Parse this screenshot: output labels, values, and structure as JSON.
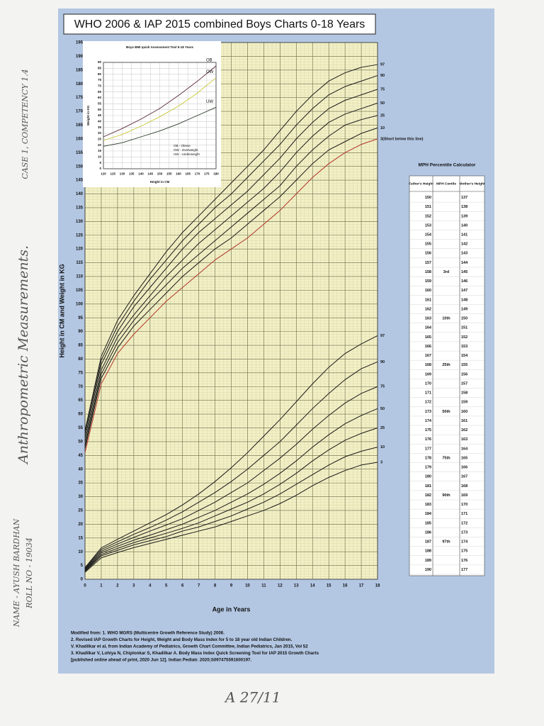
{
  "chart_data": [
    {
      "type": "line",
      "title": "WHO 2006 & IAP 2015 combined Boys Charts 0-18 Years",
      "xlabel": "Age in Years",
      "ylabel": "Height in CM and Weight in KG",
      "x": [
        0,
        1,
        2,
        3,
        4,
        5,
        6,
        7,
        8,
        9,
        10,
        11,
        12,
        13,
        14,
        15,
        16,
        17,
        18
      ],
      "xlim": [
        0,
        18
      ],
      "xticks": [
        0,
        1,
        2,
        3,
        4,
        5,
        6,
        7,
        8,
        9,
        10,
        11,
        12,
        13,
        14,
        15,
        16,
        17,
        18
      ],
      "ylim": [
        0,
        195
      ],
      "yticks": [
        0,
        5,
        10,
        15,
        20,
        25,
        30,
        35,
        40,
        45,
        50,
        55,
        60,
        65,
        70,
        75,
        80,
        85,
        90,
        95,
        100,
        105,
        110,
        115,
        120,
        125,
        130,
        135,
        140,
        145,
        150,
        155,
        160,
        165,
        170,
        175,
        180,
        185,
        190,
        195
      ],
      "grid": true,
      "series": [
        {
          "name": "97",
          "color": "#1a1a1a",
          "values": [
            54,
            81,
            94,
            103,
            111,
            119,
            126,
            132,
            138,
            144,
            150,
            156,
            163,
            170,
            176,
            181,
            184,
            186,
            187
          ]
        },
        {
          "name": "90",
          "color": "#1a1a1a",
          "values": [
            53,
            79.5,
            92,
            101,
            109,
            116,
            123,
            129,
            135,
            140,
            146,
            152,
            158,
            165,
            171,
            176,
            179,
            181,
            183
          ]
        },
        {
          "name": "75",
          "color": "#1a1a1a",
          "values": [
            51.5,
            78,
            90,
            99,
            106,
            113,
            120,
            126,
            131,
            136,
            141,
            147,
            153,
            160,
            166,
            171,
            174,
            176,
            178
          ]
        },
        {
          "name": "50",
          "color": "#1a1a1a",
          "values": [
            50,
            76,
            88,
            96,
            103,
            110,
            116,
            122,
            127,
            132,
            137,
            142,
            148,
            155,
            161,
            166,
            169,
            171,
            173
          ]
        },
        {
          "name": "25",
          "color": "#1a1a1a",
          "values": [
            48.5,
            74.5,
            86,
            94,
            101,
            107,
            113,
            118,
            123,
            128,
            133,
            138,
            143,
            150,
            156,
            161,
            165,
            167,
            168.5
          ]
        },
        {
          "name": "10",
          "color": "#1a1a1a",
          "values": [
            47.5,
            73,
            84,
            92,
            98,
            104,
            110,
            115,
            120,
            124,
            129,
            134,
            139,
            145,
            151,
            156,
            159,
            162,
            164
          ]
        },
        {
          "name": "3(Short below this line)",
          "color": "#b0352a",
          "values": [
            46,
            71,
            82,
            89,
            95,
            101,
            106,
            111,
            116,
            120,
            124,
            129,
            134,
            140,
            146,
            151,
            155,
            158,
            160
          ]
        },
        {
          "name": "97",
          "color": "#1a1a1a",
          "values": [
            4.2,
            11.4,
            14.5,
            17.5,
            20.5,
            23.5,
            27,
            31,
            35.5,
            40.5,
            46,
            52,
            58,
            64.5,
            71,
            77,
            82,
            85.5,
            88.5
          ]
        },
        {
          "name": "90",
          "color": "#1a1a1a",
          "values": [
            3.9,
            10.8,
            13.6,
            16.3,
            18.8,
            21.5,
            24.5,
            28,
            31.5,
            35.5,
            40,
            45,
            50,
            56,
            62,
            67.5,
            72.5,
            76.5,
            79
          ]
        },
        {
          "name": "75",
          "color": "#1a1a1a",
          "values": [
            3.6,
            10.2,
            12.8,
            15.2,
            17.5,
            19.7,
            22,
            25,
            28,
            31.5,
            35,
            39.5,
            44,
            49,
            54.5,
            59.5,
            64,
            67.5,
            70
          ]
        },
        {
          "name": "50",
          "color": "#1a1a1a",
          "values": [
            3.3,
            9.6,
            12,
            14.2,
            16,
            18,
            20,
            22.5,
            25,
            28,
            31,
            34.5,
            38.5,
            43,
            48,
            52.5,
            56.5,
            59.5,
            62
          ]
        },
        {
          "name": "25",
          "color": "#1a1a1a",
          "values": [
            3.1,
            9,
            11.2,
            13.3,
            15,
            16.7,
            18.5,
            20.5,
            23,
            25.5,
            28,
            31,
            34.5,
            38.5,
            43,
            47,
            50.5,
            53,
            55
          ]
        },
        {
          "name": "10",
          "color": "#1a1a1a",
          "values": [
            2.8,
            8.5,
            10.5,
            12.5,
            14,
            15.5,
            17.5,
            19,
            21,
            23,
            25.5,
            28,
            31,
            34.5,
            38,
            41.5,
            44.5,
            46.5,
            48
          ]
        },
        {
          "name": "3",
          "color": "#1a1a1a",
          "values": [
            2.5,
            7.8,
            9.7,
            11.5,
            13,
            14.5,
            16,
            17.5,
            19,
            21,
            23,
            25,
            27.5,
            30.5,
            34,
            37,
            39.5,
            41.5,
            42.5
          ]
        }
      ]
    },
    {
      "type": "line",
      "title": "Boys BMI quick Assessment Tool 5-18 Years",
      "xlabel": "Height in CM",
      "ylabel": "Weight in KG",
      "x": [
        120,
        130,
        140,
        150,
        160,
        170,
        180
      ],
      "xlim": [
        120,
        180
      ],
      "xticks": [
        120,
        125,
        130,
        135,
        140,
        145,
        150,
        155,
        160,
        165,
        170,
        175,
        180
      ],
      "ylim": [
        0,
        90
      ],
      "yticks": [
        0,
        5,
        10,
        15,
        20,
        25,
        30,
        35,
        40,
        45,
        50,
        55,
        60,
        65,
        70,
        75,
        80,
        85,
        90
      ],
      "grid": true,
      "legend": "lower right",
      "series": [
        {
          "name": "OB",
          "legend_label": "OB - Obese",
          "color": "#5a2a3a",
          "values": [
            27,
            34,
            42,
            51,
            62,
            74,
            87
          ]
        },
        {
          "name": "OW",
          "legend_label": "OW - Overweight",
          "color": "#c8c838",
          "values": [
            24,
            29,
            36,
            44,
            53,
            64,
            77
          ]
        },
        {
          "name": "UW",
          "legend_label": "UW - Underweight",
          "color": "#2a3a2a",
          "values": [
            19,
            22,
            27,
            32,
            38,
            45,
            52
          ]
        }
      ]
    }
  ],
  "mph_calculator": {
    "title": "MPH Percentile Calculator",
    "headers": [
      "Father's Height",
      "MPH Centile",
      "Mother's Height"
    ],
    "rows": [
      {
        "father": 150,
        "mother": 137
      },
      {
        "father": 151,
        "mother": 138
      },
      {
        "father": 152,
        "mother": 139
      },
      {
        "father": 153,
        "mother": 140
      },
      {
        "father": 154,
        "mother": 141
      },
      {
        "father": 155,
        "mother": 142
      },
      {
        "father": 156,
        "mother": 143
      },
      {
        "father": 157,
        "mother": 144
      },
      {
        "father": 158,
        "centile": "3rd",
        "mother": 145
      },
      {
        "father": 159,
        "mother": 146
      },
      {
        "father": 160,
        "mother": 147
      },
      {
        "father": 161,
        "mother": 148
      },
      {
        "father": 162,
        "mother": 149
      },
      {
        "father": 163,
        "centile": "10th",
        "mother": 150
      },
      {
        "father": 164,
        "mother": 151
      },
      {
        "father": 165,
        "mother": 152
      },
      {
        "father": 166,
        "mother": 153
      },
      {
        "father": 167,
        "mother": 154
      },
      {
        "father": 168,
        "centile": "25th",
        "mother": 155
      },
      {
        "father": 169,
        "mother": 156
      },
      {
        "father": 170,
        "mother": 157
      },
      {
        "father": 171,
        "mother": 158
      },
      {
        "father": 172,
        "mother": 159
      },
      {
        "father": 173,
        "centile": "50th",
        "mother": 160
      },
      {
        "father": 174,
        "mother": 161
      },
      {
        "father": 175,
        "mother": 162
      },
      {
        "father": 176,
        "mother": 163
      },
      {
        "father": 177,
        "mother": 164
      },
      {
        "father": 178,
        "centile": "75th",
        "mother": 165
      },
      {
        "father": 179,
        "mother": 166
      },
      {
        "father": 180,
        "mother": 167
      },
      {
        "father": 181,
        "mother": 168
      },
      {
        "father": 182,
        "centile": "90th",
        "mother": 169
      },
      {
        "father": 183,
        "mother": 170
      },
      {
        "father": 184,
        "mother": 171
      },
      {
        "father": 185,
        "mother": 172
      },
      {
        "father": 186,
        "mother": 173
      },
      {
        "father": 187,
        "centile": "97th",
        "mother": 174
      },
      {
        "father": 188,
        "mother": 175
      },
      {
        "father": 189,
        "mother": 176
      },
      {
        "father": 190,
        "mother": 177
      }
    ]
  },
  "footnotes": [
    "Modified from: 1. WHO MGRS (Multicentre Growth Reference Study) 2006.",
    "2. Revised IAP Growth Charts for Height, Weight and Body Mass Index for 5 to 18 year old Indian Children.",
    "V. Khadilkar et al, from Indian Academy of Pediatrics, Growth Chart Committee, Indian Pediatrics, Jan 2015, Vol 52",
    "3. Khadilkar V, Lohiya N, Chiplonkar S, Khadilkar A. Body Mass Index Quick Screening Tool for IAP 2015 Growth Charts",
    "[published online ahead of print, 2020 Jun 12]. Indian Pediatr. 2020;S097475591600197."
  ],
  "handwriting": {
    "heading": "Anthropometric Measurements.",
    "case": "CASE 1, COMPETENCY 1.4",
    "name": "NAME - AYUSH BARDHAN",
    "roll": "ROLL NO - 19034",
    "signature": "A 27/11"
  }
}
